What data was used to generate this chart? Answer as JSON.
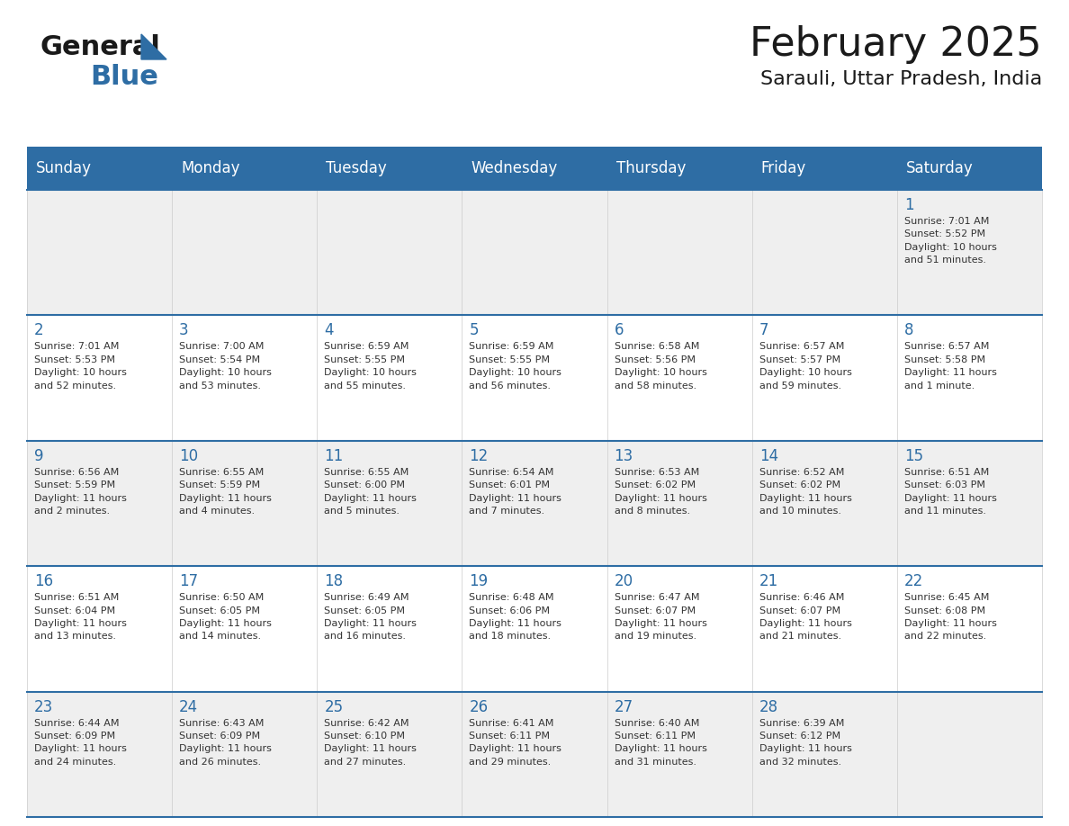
{
  "title": "February 2025",
  "subtitle": "Sarauli, Uttar Pradesh, India",
  "header_bg": "#2E6DA4",
  "header_text_color": "#FFFFFF",
  "cell_bg_light": "#EFEFEF",
  "cell_bg_white": "#FFFFFF",
  "cell_border_color": "#2E6DA4",
  "day_number_color": "#2E6DA4",
  "cell_text_color": "#333333",
  "days_of_week": [
    "Sunday",
    "Monday",
    "Tuesday",
    "Wednesday",
    "Thursday",
    "Friday",
    "Saturday"
  ],
  "weeks": [
    [
      {
        "day": "",
        "info": ""
      },
      {
        "day": "",
        "info": ""
      },
      {
        "day": "",
        "info": ""
      },
      {
        "day": "",
        "info": ""
      },
      {
        "day": "",
        "info": ""
      },
      {
        "day": "",
        "info": ""
      },
      {
        "day": "1",
        "info": "Sunrise: 7:01 AM\nSunset: 5:52 PM\nDaylight: 10 hours\nand 51 minutes."
      }
    ],
    [
      {
        "day": "2",
        "info": "Sunrise: 7:01 AM\nSunset: 5:53 PM\nDaylight: 10 hours\nand 52 minutes."
      },
      {
        "day": "3",
        "info": "Sunrise: 7:00 AM\nSunset: 5:54 PM\nDaylight: 10 hours\nand 53 minutes."
      },
      {
        "day": "4",
        "info": "Sunrise: 6:59 AM\nSunset: 5:55 PM\nDaylight: 10 hours\nand 55 minutes."
      },
      {
        "day": "5",
        "info": "Sunrise: 6:59 AM\nSunset: 5:55 PM\nDaylight: 10 hours\nand 56 minutes."
      },
      {
        "day": "6",
        "info": "Sunrise: 6:58 AM\nSunset: 5:56 PM\nDaylight: 10 hours\nand 58 minutes."
      },
      {
        "day": "7",
        "info": "Sunrise: 6:57 AM\nSunset: 5:57 PM\nDaylight: 10 hours\nand 59 minutes."
      },
      {
        "day": "8",
        "info": "Sunrise: 6:57 AM\nSunset: 5:58 PM\nDaylight: 11 hours\nand 1 minute."
      }
    ],
    [
      {
        "day": "9",
        "info": "Sunrise: 6:56 AM\nSunset: 5:59 PM\nDaylight: 11 hours\nand 2 minutes."
      },
      {
        "day": "10",
        "info": "Sunrise: 6:55 AM\nSunset: 5:59 PM\nDaylight: 11 hours\nand 4 minutes."
      },
      {
        "day": "11",
        "info": "Sunrise: 6:55 AM\nSunset: 6:00 PM\nDaylight: 11 hours\nand 5 minutes."
      },
      {
        "day": "12",
        "info": "Sunrise: 6:54 AM\nSunset: 6:01 PM\nDaylight: 11 hours\nand 7 minutes."
      },
      {
        "day": "13",
        "info": "Sunrise: 6:53 AM\nSunset: 6:02 PM\nDaylight: 11 hours\nand 8 minutes."
      },
      {
        "day": "14",
        "info": "Sunrise: 6:52 AM\nSunset: 6:02 PM\nDaylight: 11 hours\nand 10 minutes."
      },
      {
        "day": "15",
        "info": "Sunrise: 6:51 AM\nSunset: 6:03 PM\nDaylight: 11 hours\nand 11 minutes."
      }
    ],
    [
      {
        "day": "16",
        "info": "Sunrise: 6:51 AM\nSunset: 6:04 PM\nDaylight: 11 hours\nand 13 minutes."
      },
      {
        "day": "17",
        "info": "Sunrise: 6:50 AM\nSunset: 6:05 PM\nDaylight: 11 hours\nand 14 minutes."
      },
      {
        "day": "18",
        "info": "Sunrise: 6:49 AM\nSunset: 6:05 PM\nDaylight: 11 hours\nand 16 minutes."
      },
      {
        "day": "19",
        "info": "Sunrise: 6:48 AM\nSunset: 6:06 PM\nDaylight: 11 hours\nand 18 minutes."
      },
      {
        "day": "20",
        "info": "Sunrise: 6:47 AM\nSunset: 6:07 PM\nDaylight: 11 hours\nand 19 minutes."
      },
      {
        "day": "21",
        "info": "Sunrise: 6:46 AM\nSunset: 6:07 PM\nDaylight: 11 hours\nand 21 minutes."
      },
      {
        "day": "22",
        "info": "Sunrise: 6:45 AM\nSunset: 6:08 PM\nDaylight: 11 hours\nand 22 minutes."
      }
    ],
    [
      {
        "day": "23",
        "info": "Sunrise: 6:44 AM\nSunset: 6:09 PM\nDaylight: 11 hours\nand 24 minutes."
      },
      {
        "day": "24",
        "info": "Sunrise: 6:43 AM\nSunset: 6:09 PM\nDaylight: 11 hours\nand 26 minutes."
      },
      {
        "day": "25",
        "info": "Sunrise: 6:42 AM\nSunset: 6:10 PM\nDaylight: 11 hours\nand 27 minutes."
      },
      {
        "day": "26",
        "info": "Sunrise: 6:41 AM\nSunset: 6:11 PM\nDaylight: 11 hours\nand 29 minutes."
      },
      {
        "day": "27",
        "info": "Sunrise: 6:40 AM\nSunset: 6:11 PM\nDaylight: 11 hours\nand 31 minutes."
      },
      {
        "day": "28",
        "info": "Sunrise: 6:39 AM\nSunset: 6:12 PM\nDaylight: 11 hours\nand 32 minutes."
      },
      {
        "day": "",
        "info": ""
      }
    ]
  ],
  "logo_general_color": "#1a1a1a",
  "logo_blue_color": "#2E6DA4",
  "title_fontsize": 32,
  "subtitle_fontsize": 16,
  "dow_fontsize": 12,
  "day_num_fontsize": 12,
  "info_fontsize": 8
}
